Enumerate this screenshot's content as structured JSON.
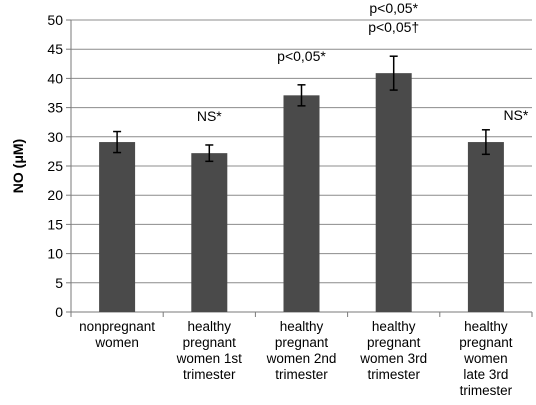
{
  "chart_data": {
    "type": "bar",
    "ylabel": "NO (μM)",
    "ylim": [
      0,
      50
    ],
    "yticks": [
      0,
      5,
      10,
      15,
      20,
      25,
      30,
      35,
      40,
      45,
      50
    ],
    "grid": true,
    "bar_color": "#4a4a4a",
    "grid_color": "#8c8c8c",
    "categories": [
      [
        "nonpregnant",
        "women"
      ],
      [
        "healthy",
        "pregnant",
        "women 1st",
        "trimester"
      ],
      [
        "healthy",
        "pregnant",
        "women 2nd",
        "trimester"
      ],
      [
        "healthy",
        "pregnant",
        "women 3rd",
        "trimester"
      ],
      [
        "healthy",
        "pregnant",
        "women",
        "late 3rd",
        "trimester"
      ]
    ],
    "values": [
      29.1,
      27.2,
      37.1,
      40.9,
      29.1
    ],
    "error": [
      1.8,
      1.4,
      1.8,
      2.9,
      2.1
    ],
    "annotations": [
      [],
      [
        "NS*"
      ],
      [
        "p<0,05*"
      ],
      [
        "p<0,05*",
        "p<0,05†"
      ],
      [
        "NS*"
      ]
    ]
  }
}
